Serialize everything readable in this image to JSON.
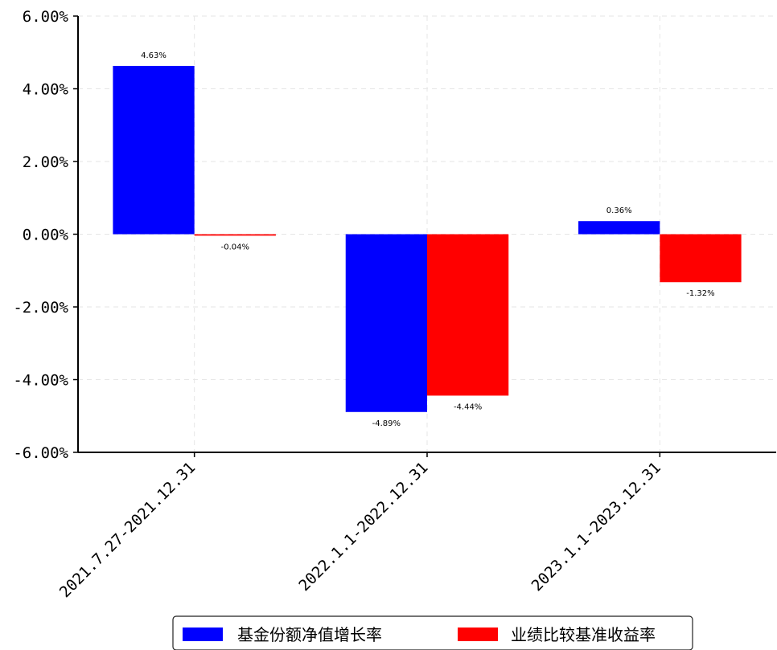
{
  "chart_data": {
    "type": "bar",
    "categories": [
      "2021.7.27-2021.12.31",
      "2022.1.1-2022.12.31",
      "2023.1.1-2023.12.31"
    ],
    "series": [
      {
        "name": "基金份额净值增长率",
        "values": [
          4.63,
          -4.89,
          0.36
        ],
        "labels": [
          "4.63%",
          "-4.89%",
          "0.36%"
        ],
        "color": "#0000ff"
      },
      {
        "name": "业绩比较基准收益率",
        "values": [
          -0.04,
          -4.44,
          -1.32
        ],
        "labels": [
          "-0.04%",
          "-4.44%",
          "-1.32%"
        ],
        "color": "#ff0000"
      }
    ],
    "ylim": [
      -6,
      6
    ],
    "yticks": [
      6,
      4,
      2,
      0,
      -2,
      -4,
      -6
    ],
    "ytick_labels": [
      "6.00%",
      "4.00%",
      "2.00%",
      "0.00%",
      "-2.00%",
      "-4.00%",
      "-6.00%"
    ],
    "xtick_labels": [
      "2021.7.27-2021.12.31",
      "2022.1.1-2022.12.31",
      "2023.1.1-2023.12.31"
    ],
    "grid": true,
    "legend_position": "bottom-center",
    "title": "",
    "xlabel": "",
    "ylabel": ""
  }
}
